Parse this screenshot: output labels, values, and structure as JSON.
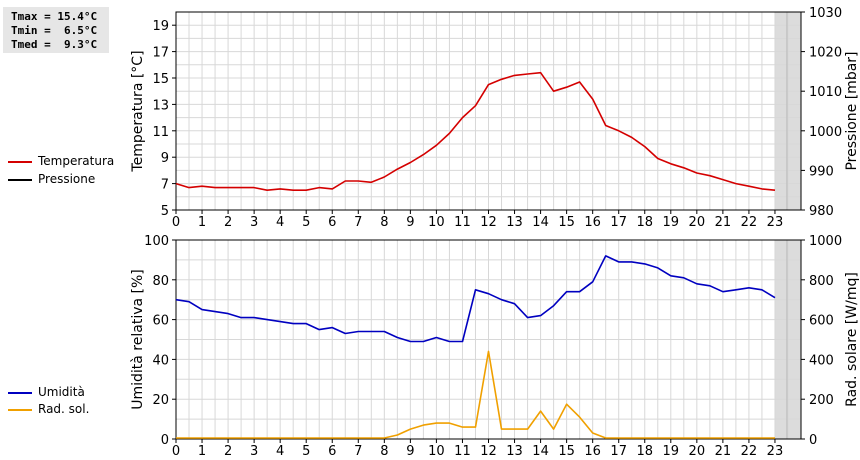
{
  "stats": {
    "tmax": "Tmax = 15.4°C",
    "tmin": "Tmin =  6.5°C",
    "tmed": "Tmed =  9.3°C"
  },
  "legend_top": [
    {
      "label": "Temperatura",
      "color": "#d40000"
    },
    {
      "label": "Pressione",
      "color": "#000000"
    }
  ],
  "legend_bottom": [
    {
      "label": "Umidità",
      "color": "#0000c0"
    },
    {
      "label": "Rad. sol.",
      "color": "#f0a000"
    }
  ],
  "chart_data": [
    {
      "type": "line",
      "xlim": [
        0,
        24
      ],
      "x_ticks": [
        "0",
        "1",
        "2",
        "3",
        "4",
        "5",
        "6",
        "7",
        "8",
        "9",
        "10",
        "11",
        "12",
        "13",
        "14",
        "15",
        "16",
        "17",
        "18",
        "19",
        "20",
        "21",
        "22",
        "23"
      ],
      "ylabel": "Temperatura [°C]",
      "ylim": [
        5,
        20
      ],
      "y_ticks": [
        "5",
        "7",
        "9",
        "11",
        "13",
        "15",
        "17",
        "19"
      ],
      "ylabel_right": "Pressione [mbar]",
      "ylim_right": [
        980,
        1030
      ],
      "y_ticks_right": [
        "980",
        "990",
        "1000",
        "1010",
        "1020",
        "1030"
      ],
      "grid": true,
      "shaded_region": [
        23,
        24
      ],
      "series": [
        {
          "name": "Temperatura",
          "color": "#d40000",
          "x": [
            0,
            0.5,
            1,
            1.5,
            2,
            2.5,
            3,
            3.5,
            4,
            4.5,
            5,
            5.5,
            6,
            6.5,
            7,
            7.5,
            8,
            8.5,
            9,
            9.5,
            10,
            10.5,
            11,
            11.5,
            12,
            12.5,
            13,
            13.5,
            14,
            14.5,
            15,
            15.5,
            16,
            16.5,
            17,
            17.5,
            18,
            18.5,
            19,
            19.5,
            20,
            20.5,
            21,
            21.5,
            22,
            22.5,
            23
          ],
          "y": [
            7.0,
            6.7,
            6.8,
            6.7,
            6.7,
            6.7,
            6.7,
            6.5,
            6.6,
            6.5,
            6.5,
            6.7,
            6.6,
            7.2,
            7.2,
            7.1,
            7.5,
            8.1,
            8.6,
            9.2,
            9.9,
            10.8,
            12.0,
            12.9,
            14.5,
            14.9,
            15.2,
            15.3,
            15.4,
            14.0,
            14.3,
            14.7,
            13.4,
            11.4,
            11.0,
            10.5,
            9.8,
            8.9,
            8.5,
            8.2,
            7.8,
            7.6,
            7.3,
            7.0,
            6.8,
            6.6,
            6.5
          ]
        },
        {
          "name": "Pressione",
          "color": "#000000",
          "x": [],
          "y": []
        }
      ]
    },
    {
      "type": "line",
      "xlim": [
        0,
        24
      ],
      "x_ticks": [
        "0",
        "1",
        "2",
        "3",
        "4",
        "5",
        "6",
        "7",
        "8",
        "9",
        "10",
        "11",
        "12",
        "13",
        "14",
        "15",
        "16",
        "17",
        "18",
        "19",
        "20",
        "21",
        "22",
        "23"
      ],
      "ylabel": "Umidità relativa [%]",
      "ylim": [
        0,
        100
      ],
      "y_ticks": [
        "0",
        "20",
        "40",
        "60",
        "80",
        "100"
      ],
      "ylabel_right": "Rad. solare [W/mq]",
      "ylim_right": [
        0,
        1000
      ],
      "y_ticks_right": [
        "0",
        "200",
        "400",
        "600",
        "800",
        "1000"
      ],
      "grid": true,
      "shaded_region": [
        23,
        24
      ],
      "series": [
        {
          "name": "Umidità",
          "color": "#0000c0",
          "axis": "left",
          "x": [
            0,
            0.5,
            1,
            1.5,
            2,
            2.5,
            3,
            3.5,
            4,
            4.5,
            5,
            5.5,
            6,
            6.5,
            7,
            7.5,
            8,
            8.5,
            9,
            9.5,
            10,
            10.5,
            11,
            11.5,
            12,
            12.5,
            13,
            13.5,
            14,
            14.5,
            15,
            15.5,
            16,
            16.5,
            17,
            17.5,
            18,
            18.5,
            19,
            19.5,
            20,
            20.5,
            21,
            21.5,
            22,
            22.5,
            23
          ],
          "y": [
            70,
            69,
            65,
            64,
            63,
            61,
            61,
            60,
            59,
            58,
            58,
            55,
            56,
            53,
            54,
            54,
            54,
            51,
            49,
            49,
            51,
            49,
            49,
            75,
            73,
            70,
            68,
            61,
            62,
            67,
            74,
            74,
            79,
            92,
            89,
            89,
            88,
            86,
            82,
            81,
            78,
            77,
            74,
            75,
            76,
            75,
            71
          ]
        },
        {
          "name": "Rad. sol.",
          "color": "#f0a000",
          "axis": "right",
          "x": [
            0,
            1,
            2,
            3,
            4,
            5,
            6,
            7,
            8,
            8.5,
            9,
            9.5,
            10,
            10.5,
            11,
            11.5,
            12,
            12.5,
            13,
            13.5,
            14,
            14.5,
            15,
            15.5,
            16,
            16.5,
            17,
            18,
            19,
            20,
            21,
            22,
            23
          ],
          "y": [
            5,
            5,
            5,
            5,
            5,
            5,
            5,
            5,
            5,
            20,
            50,
            70,
            80,
            80,
            60,
            60,
            440,
            50,
            50,
            50,
            140,
            50,
            175,
            110,
            30,
            5,
            5,
            5,
            5,
            5,
            5,
            5,
            5
          ]
        }
      ]
    }
  ]
}
